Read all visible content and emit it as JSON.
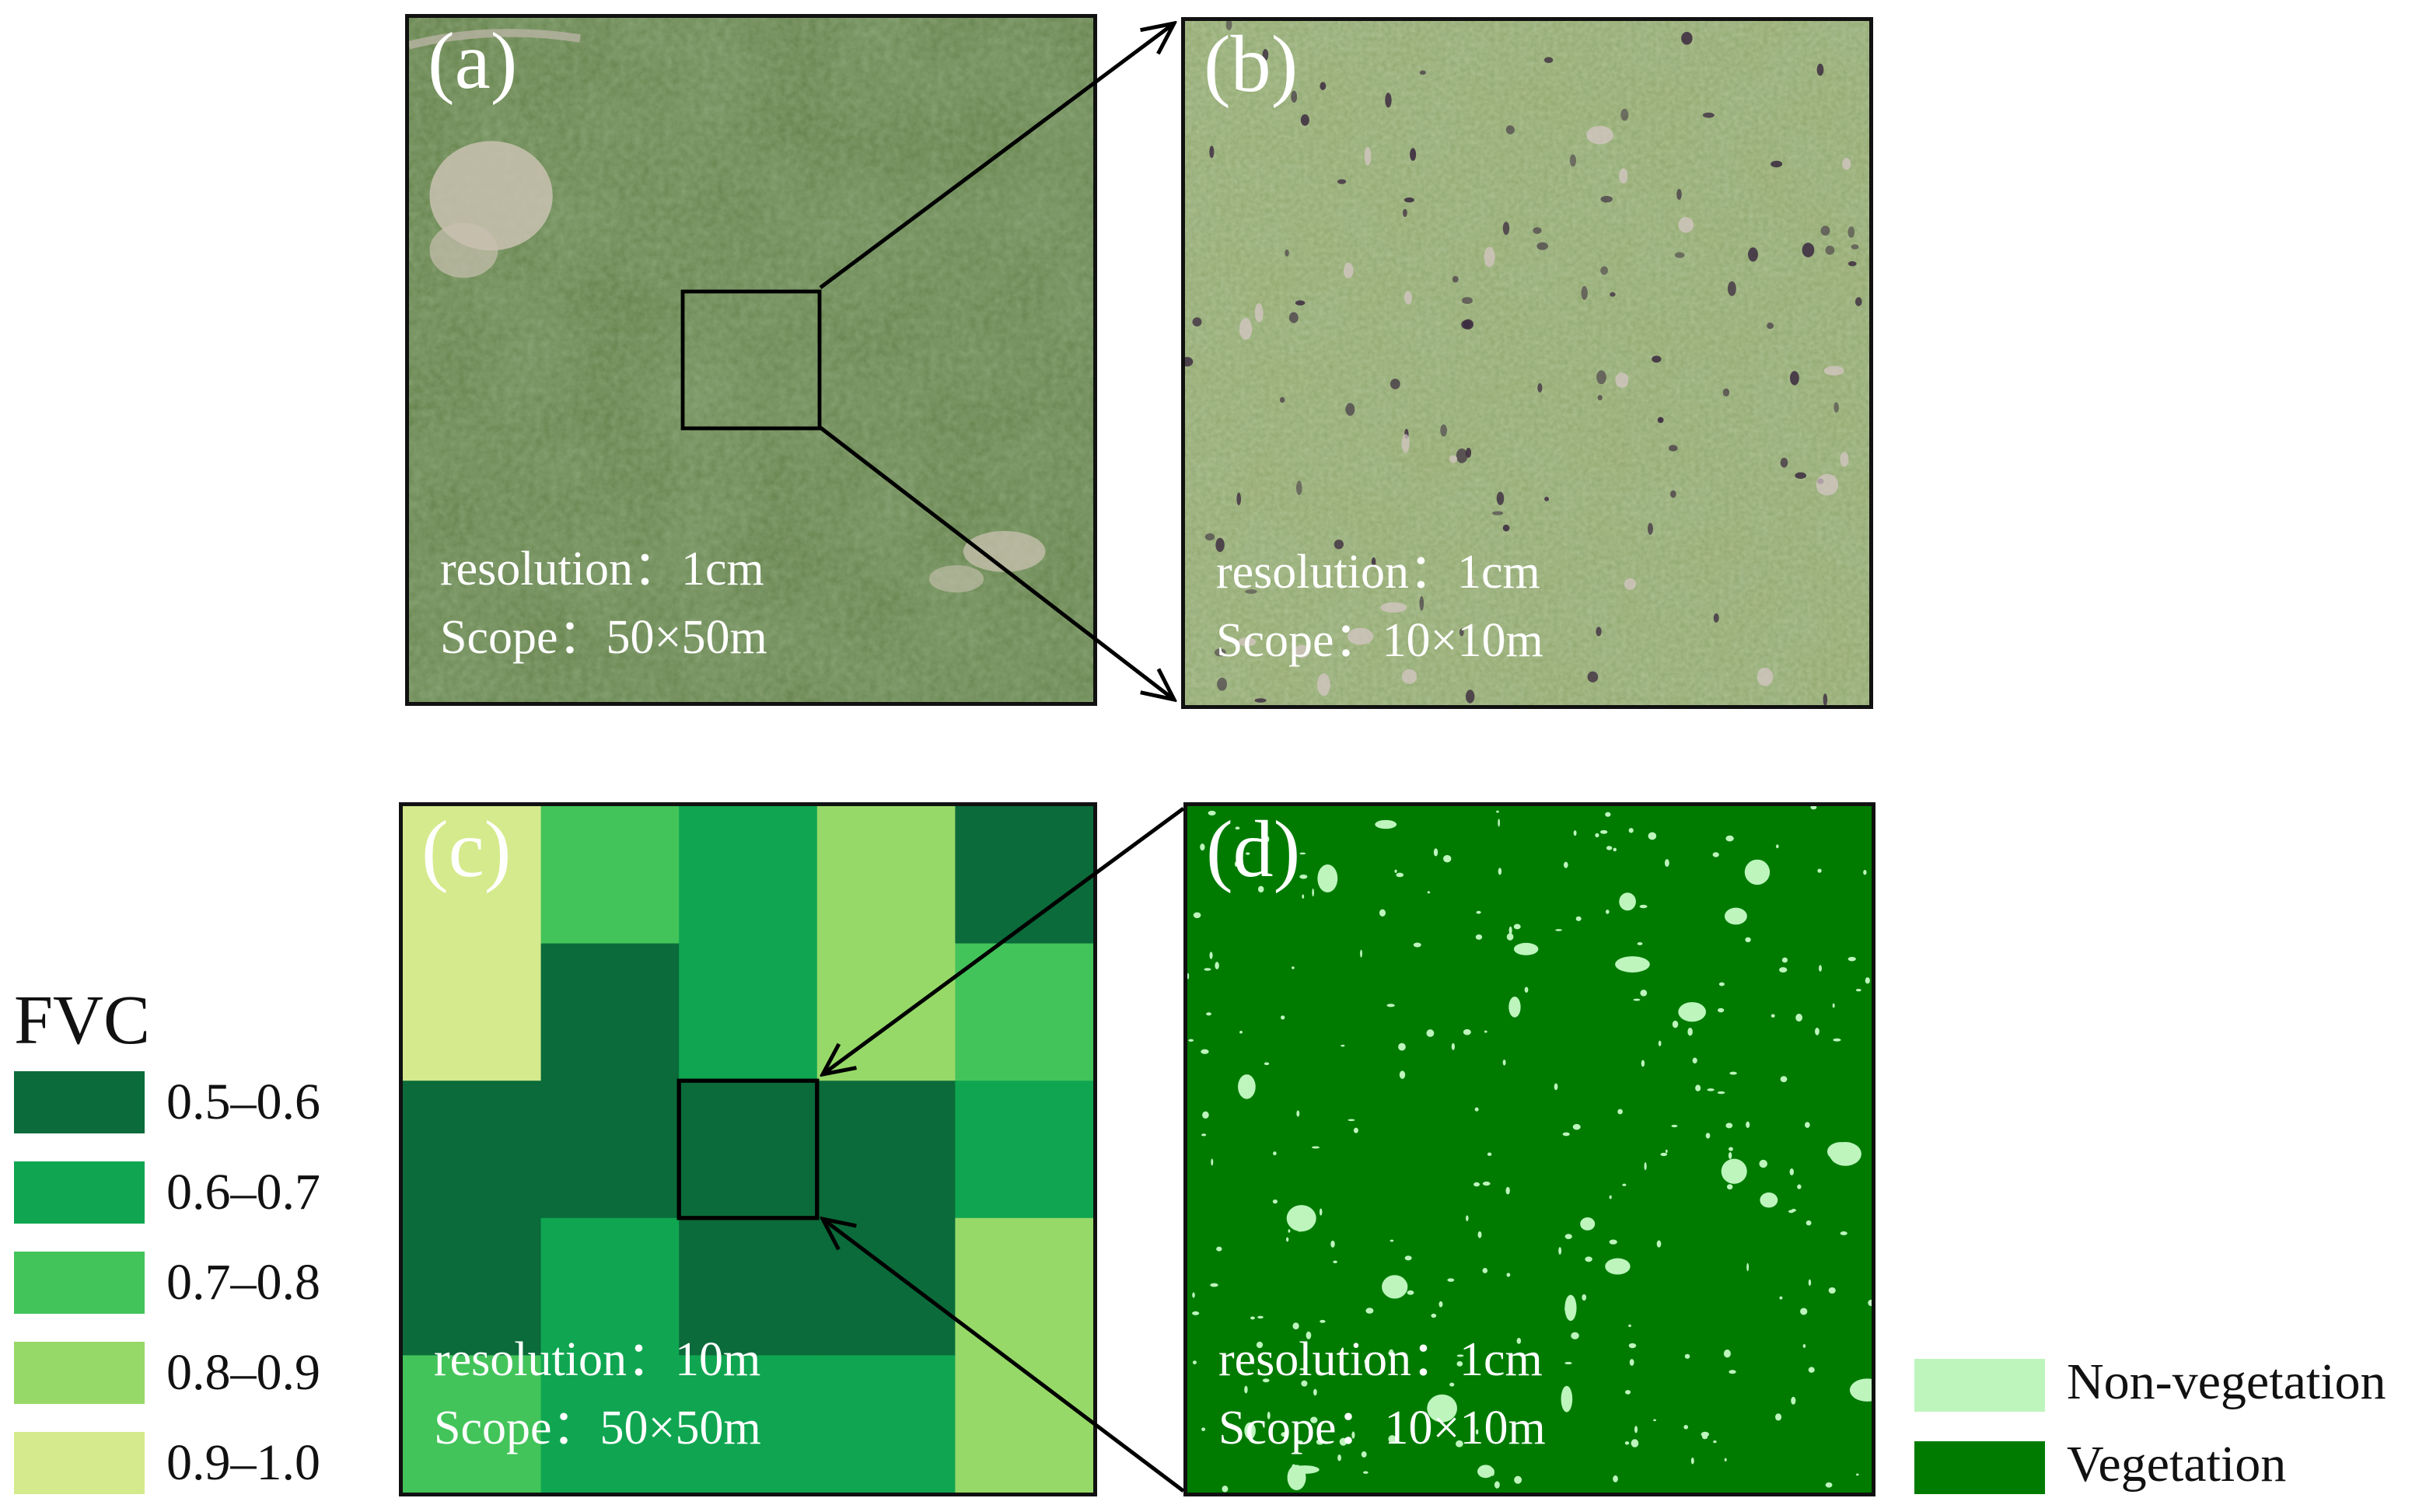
{
  "panels": {
    "a": {
      "label": "(a)",
      "resolution": "resolution：1cm",
      "scope": "Scope：50×50m"
    },
    "b": {
      "label": "(b)",
      "resolution": "resolution：1cm",
      "scope": "Scope：10×10m"
    },
    "c": {
      "label": "(c)",
      "resolution": "resolution：10m",
      "scope": "Scope：50×50m"
    },
    "d": {
      "label": "(d)",
      "resolution": "resolution：1cm",
      "scope": "Scope：10×10m"
    }
  },
  "fvc_legend": {
    "title": "FVC",
    "items": [
      {
        "label": "0.5–0.6",
        "color": "#0b6b3a"
      },
      {
        "label": "0.6–0.7",
        "color": "#10a651"
      },
      {
        "label": "0.7–0.8",
        "color": "#43c45a"
      },
      {
        "label": "0.8–0.9",
        "color": "#97d968"
      },
      {
        "label": "0.9–1.0",
        "color": "#d5ea8c"
      }
    ]
  },
  "fvc_grid": [
    [
      4,
      2,
      1,
      3,
      0
    ],
    [
      4,
      0,
      1,
      3,
      2
    ],
    [
      0,
      0,
      0,
      0,
      1
    ],
    [
      0,
      1,
      0,
      0,
      3
    ],
    [
      2,
      1,
      1,
      1,
      3
    ]
  ],
  "class_legend": {
    "items": [
      {
        "label": "Non-vegetation",
        "color": "#bdf5bd"
      },
      {
        "label": "Vegetation",
        "color": "#007b00"
      }
    ]
  },
  "colors": {
    "grass": "#5f7d45",
    "grass_light": "#8fa56a",
    "bare_patch": "#c9c1b0"
  }
}
